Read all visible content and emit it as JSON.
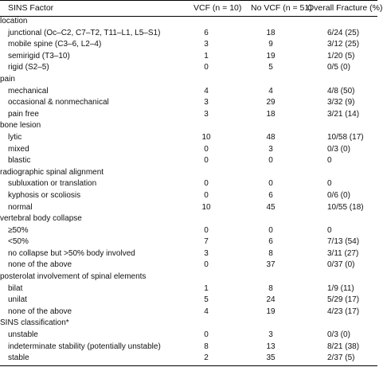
{
  "table": {
    "headers": {
      "factor": "SINS Factor",
      "vcf": "VCF (n = 10)",
      "no_vcf": "No VCF (n = 51)",
      "overall": "Overall Fracture (%)"
    },
    "rows": [
      {
        "type": "section",
        "factor": "location"
      },
      {
        "type": "item",
        "factor": "junctional (Oc–C2, C7–T2, T11–L1, L5–S1)",
        "vcf": "6",
        "no_vcf": "18",
        "overall": "6/24 (25)"
      },
      {
        "type": "item",
        "factor": "mobile spine (C3–6, L2–4)",
        "vcf": "3",
        "no_vcf": "9",
        "overall": "3/12 (25)"
      },
      {
        "type": "item",
        "factor": "semirigid (T3–10)",
        "vcf": "1",
        "no_vcf": "19",
        "overall": "1/20 (5)"
      },
      {
        "type": "item",
        "factor": "rigid (S2–5)",
        "vcf": "0",
        "no_vcf": "5",
        "overall": "0/5 (0)"
      },
      {
        "type": "section",
        "factor": "pain"
      },
      {
        "type": "item",
        "factor": "mechanical",
        "vcf": "4",
        "no_vcf": "4",
        "overall": "4/8 (50)"
      },
      {
        "type": "item",
        "factor": "occasional & nonmechanical",
        "vcf": "3",
        "no_vcf": "29",
        "overall": "3/32 (9)"
      },
      {
        "type": "item",
        "factor": "pain free",
        "vcf": "3",
        "no_vcf": "18",
        "overall": "3/21 (14)"
      },
      {
        "type": "section",
        "factor": "bone lesion"
      },
      {
        "type": "item",
        "factor": "lytic",
        "vcf": "10",
        "no_vcf": "48",
        "overall": "10/58 (17)"
      },
      {
        "type": "item",
        "factor": "mixed",
        "vcf": "0",
        "no_vcf": "3",
        "overall": "0/3 (0)"
      },
      {
        "type": "item",
        "factor": "blastic",
        "vcf": "0",
        "no_vcf": "0",
        "overall": "0"
      },
      {
        "type": "section",
        "factor": "radiographic spinal alignment"
      },
      {
        "type": "item",
        "factor": "subluxation or translation",
        "vcf": "0",
        "no_vcf": "0",
        "overall": "0"
      },
      {
        "type": "item",
        "factor": "kyphosis or scoliosis",
        "vcf": "0",
        "no_vcf": "6",
        "overall": "0/6 (0)"
      },
      {
        "type": "item",
        "factor": "normal",
        "vcf": "10",
        "no_vcf": "45",
        "overall": "10/55 (18)"
      },
      {
        "type": "section",
        "factor": "vertebral body collapse"
      },
      {
        "type": "item",
        "factor": "≥50%",
        "vcf": "0",
        "no_vcf": "0",
        "overall": "0"
      },
      {
        "type": "item",
        "factor": "<50%",
        "vcf": "7",
        "no_vcf": "6",
        "overall": "7/13 (54)"
      },
      {
        "type": "item",
        "factor": "no collapse but >50% body involved",
        "vcf": "3",
        "no_vcf": "8",
        "overall": "3/11 (27)"
      },
      {
        "type": "item",
        "factor": "none of the above",
        "vcf": "0",
        "no_vcf": "37",
        "overall": "0/37 (0)"
      },
      {
        "type": "section",
        "factor": "posterolat involvement of spinal elements"
      },
      {
        "type": "item",
        "factor": "bilat",
        "vcf": "1",
        "no_vcf": "8",
        "overall": "1/9 (11)"
      },
      {
        "type": "item",
        "factor": "unilat",
        "vcf": "5",
        "no_vcf": "24",
        "overall": "5/29 (17)"
      },
      {
        "type": "item",
        "factor": "none of the above",
        "vcf": "4",
        "no_vcf": "19",
        "overall": "4/23 (17)"
      },
      {
        "type": "section",
        "factor": "SINS classification*"
      },
      {
        "type": "item",
        "factor": "unstable",
        "vcf": "0",
        "no_vcf": "3",
        "overall": "0/3 (0)"
      },
      {
        "type": "item",
        "factor": "indeterminate stability (potentially unstable)",
        "vcf": "8",
        "no_vcf": "13",
        "overall": "8/21 (38)"
      },
      {
        "type": "item",
        "factor": "stable",
        "vcf": "2",
        "no_vcf": "35",
        "overall": "2/37 (5)"
      }
    ]
  }
}
